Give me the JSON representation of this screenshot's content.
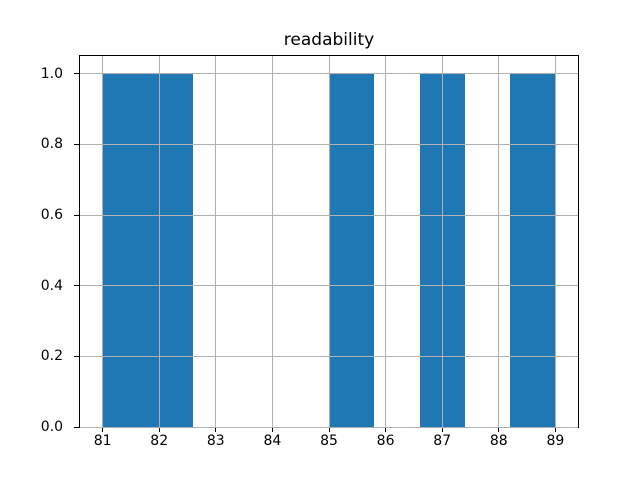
{
  "chart_data": {
    "type": "bar",
    "subtype": "histogram",
    "title": "readability",
    "xlabel": "",
    "ylabel": "",
    "bin_edges": [
      81.0,
      81.8,
      82.6,
      83.4,
      84.2,
      85.0,
      85.8,
      86.6,
      87.4,
      88.2,
      89.0
    ],
    "counts": [
      1,
      1,
      0,
      0,
      0,
      1,
      0,
      1,
      0,
      1
    ],
    "xticks": [
      81,
      82,
      83,
      84,
      85,
      86,
      87,
      88,
      89
    ],
    "xtick_labels": [
      "81",
      "82",
      "83",
      "84",
      "85",
      "86",
      "87",
      "88",
      "89"
    ],
    "yticks": [
      0.0,
      0.2,
      0.4,
      0.6,
      0.8,
      1.0
    ],
    "ytick_labels": [
      "0.0",
      "0.2",
      "0.4",
      "0.6",
      "0.8",
      "1.0"
    ],
    "xlim": [
      80.6,
      89.4
    ],
    "ylim": [
      0,
      1.05
    ],
    "grid": true,
    "grid_over_bars": true,
    "legend": null,
    "colors": {
      "bar": "#1f77b4",
      "grid": "#b0b0b0",
      "spine": "#000000",
      "text": "#000000",
      "background": "#ffffff"
    }
  }
}
